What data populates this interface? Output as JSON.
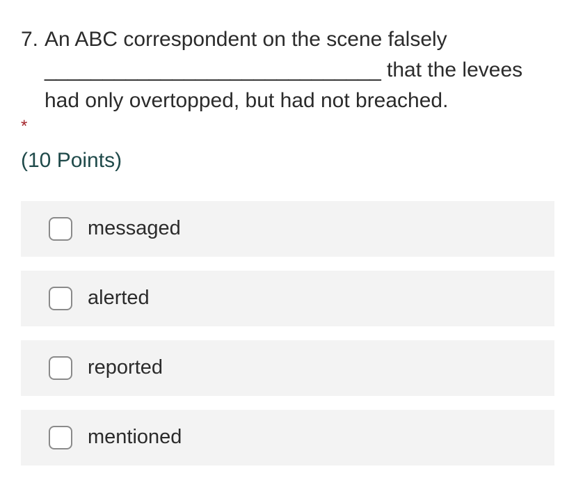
{
  "question": {
    "number": "7.",
    "line1": "An ABC correspondent on the scene falsely",
    "blank": "_____________________________",
    "line2_tail": "that the levees",
    "line3": "had only overtopped, but had not breached.",
    "required_marker": "*",
    "points": "(10 Points)"
  },
  "options": [
    {
      "label": "messaged",
      "checked": false
    },
    {
      "label": "alerted",
      "checked": false
    },
    {
      "label": "reported",
      "checked": false
    },
    {
      "label": "mentioned",
      "checked": false
    }
  ],
  "colors": {
    "required": "#a4262c",
    "points": "#1f4a4a",
    "option_bg": "#f3f3f3"
  }
}
